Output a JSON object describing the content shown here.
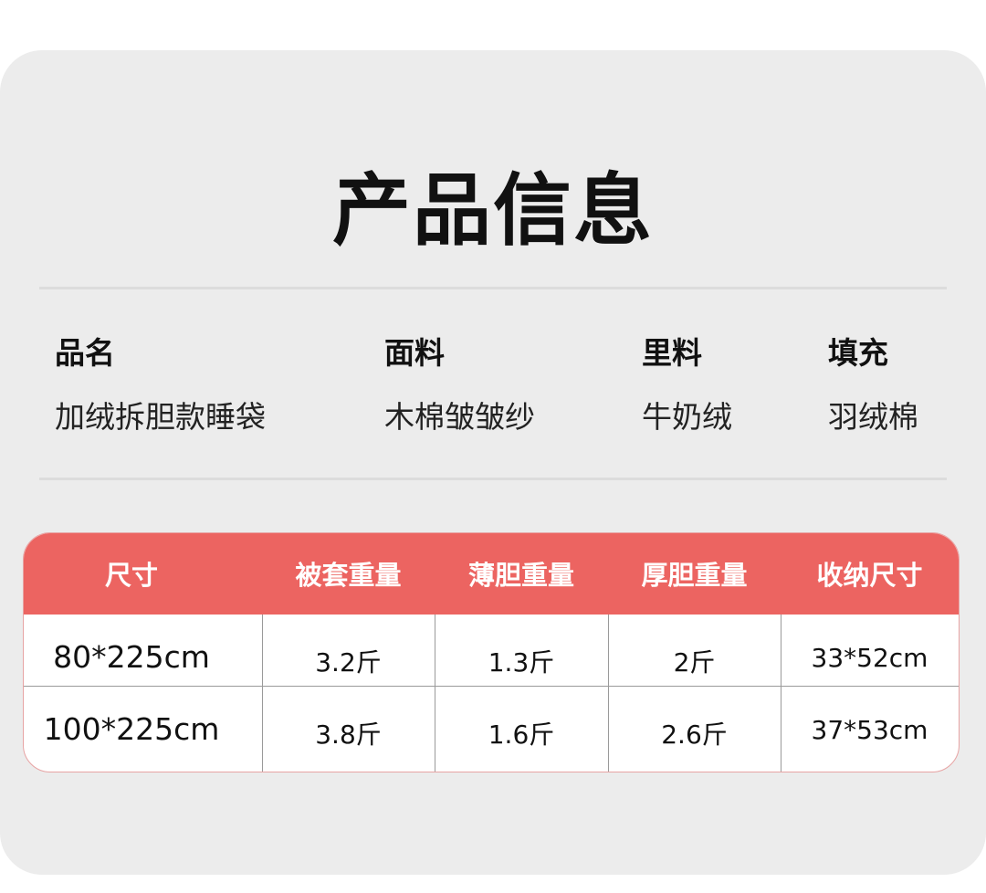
{
  "title": "产品信息",
  "info": [
    {
      "label": "品名",
      "value": "加绒拆胆款睡袋"
    },
    {
      "label": "面料",
      "value": "木棉皱皱纱"
    },
    {
      "label": "里料",
      "value": "牛奶绒"
    },
    {
      "label": "填充",
      "value": "羽绒棉"
    }
  ],
  "table": {
    "header_color": "#ec6461",
    "headers": [
      "尺寸",
      "被套重量",
      "薄胆重量",
      "厚胆重量",
      "收纳尺寸"
    ],
    "rows": [
      [
        "80*225cm",
        "3.2斤",
        "1.3斤",
        "2斤",
        "33*52cm"
      ],
      [
        "100*225cm",
        "3.8斤",
        "1.6斤",
        "2.6斤",
        "37*53cm"
      ]
    ]
  }
}
